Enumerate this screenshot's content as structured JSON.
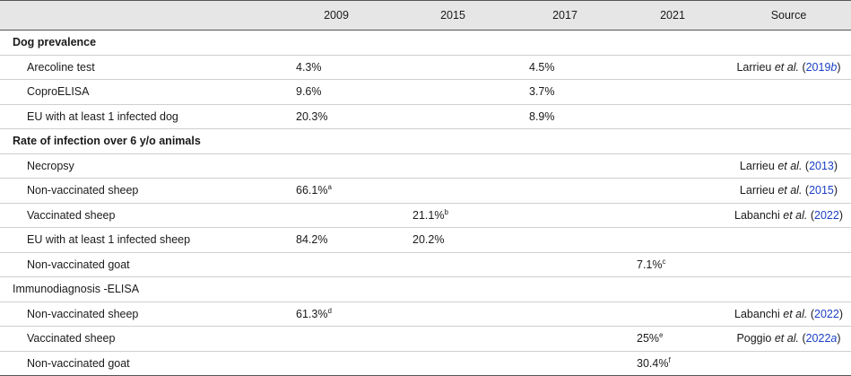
{
  "header": {
    "c0": "",
    "c1": "2009",
    "c2": "2015",
    "c3": "2017",
    "c4": "2021",
    "c5": "Source"
  },
  "rows": [
    {
      "label": "Dog prevalence",
      "kind": "sect"
    },
    {
      "label": "Arecoline test",
      "v2009": "4.3%",
      "v2017": "4.5%",
      "src_author": "Larrieu",
      "src_etal": "et al.",
      "src_year": "2019",
      "src_suffix": "b"
    },
    {
      "label": "CoproELISA",
      "v2009": "9.6%",
      "v2017": "3.7%"
    },
    {
      "label": "EU with at least 1 infected dog",
      "v2009": "20.3%",
      "v2017": "8.9%"
    },
    {
      "label": "Rate of infection over 6 y/o animals",
      "kind": "sect"
    },
    {
      "label": "Necropsy",
      "src_author": "Larrieu",
      "src_etal": "et al.",
      "src_year": "2013"
    },
    {
      "label": "Non-vaccinated sheep",
      "v2009": "66.1%",
      "v2009_sup": "a",
      "src_author": "Larrieu",
      "src_etal": "et al.",
      "src_year": "2015"
    },
    {
      "label": "Vaccinated sheep",
      "v2015": "21.1%",
      "v2015_sup": "b",
      "src_author": "Labanchi",
      "src_etal": "et al.",
      "src_year": "2022"
    },
    {
      "label": "EU with at least 1 infected sheep",
      "v2009": "84.2%",
      "v2015": "20.2%"
    },
    {
      "label": "Non-vaccinated goat",
      "v2021": "7.1%",
      "v2021_sup": "c"
    },
    {
      "label": "Immunodiagnosis -ELISA",
      "kind": "sub"
    },
    {
      "label": "Non-vaccinated sheep",
      "v2009": "61.3%",
      "v2009_sup": "d",
      "src_author": "Labanchi",
      "src_etal": "et al.",
      "src_year": "2022"
    },
    {
      "label": "Vaccinated sheep",
      "v2021": "25%",
      "v2021_sup": "e",
      "src_author": "Poggio",
      "src_etal": "et al.",
      "src_year": "2022",
      "src_suffix": "a"
    },
    {
      "label": "Non-vaccinated goat",
      "v2021": "30.4%",
      "v2021_sup": "f"
    }
  ]
}
